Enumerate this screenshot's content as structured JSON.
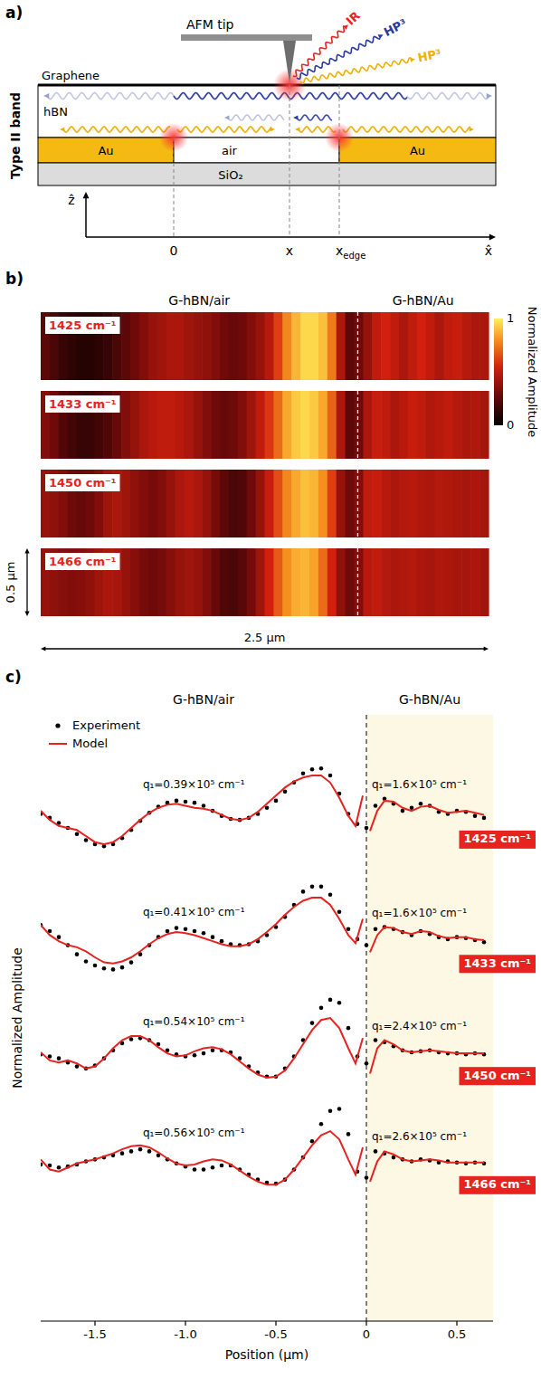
{
  "panel_a": {
    "letter": "a)",
    "side_label": "Type II band",
    "tip": "AFM tip",
    "beams": [
      "IR",
      "HP³",
      "HP³"
    ],
    "layers": {
      "graphene": "Graphene",
      "hbn": "hBN",
      "au_left": "Au",
      "air": "air",
      "au_right": "Au",
      "substrate": "SiO₂"
    },
    "axes": {
      "z_label": "ẑ",
      "x_label": "x̂",
      "positions": [
        {
          "text": "0"
        },
        {
          "text": "x"
        },
        {
          "text": "x",
          "sub": "edge"
        }
      ]
    }
  },
  "panel_b": {
    "letter": "b)",
    "regions": [
      "G-hBN/air",
      "G-hBN/Au"
    ],
    "xlim": [
      0,
      2.5
    ],
    "edge": 1.77,
    "scale_x": "2.5 μm",
    "scale_y": "0.5 μm",
    "colorbar": {
      "label": "Normalized Amplitude",
      "range": [
        0,
        1
      ],
      "ticks": [
        0,
        1
      ]
    },
    "maps": [
      {
        "label": "1425 cm⁻¹",
        "cells": [
          0.25,
          0.2,
          0.15,
          0.12,
          0.1,
          0.1,
          0.12,
          0.15,
          0.2,
          0.25,
          0.3,
          0.35,
          0.4,
          0.42,
          0.45,
          0.45,
          0.42,
          0.4,
          0.38,
          0.35,
          0.3,
          0.28,
          0.3,
          0.35,
          0.4,
          0.48,
          0.62,
          0.78,
          0.88,
          0.95,
          0.95,
          0.9,
          0.75,
          0.45,
          0.25,
          0.3,
          0.4,
          0.5,
          0.55,
          0.5,
          0.45,
          0.5,
          0.55,
          0.5,
          0.45,
          0.5,
          0.52,
          0.48,
          0.45,
          0.45
        ]
      },
      {
        "label": "1433 cm⁻¹",
        "cells": [
          0.35,
          0.3,
          0.22,
          0.18,
          0.15,
          0.15,
          0.18,
          0.22,
          0.28,
          0.35,
          0.4,
          0.45,
          0.48,
          0.5,
          0.5,
          0.48,
          0.45,
          0.4,
          0.35,
          0.3,
          0.28,
          0.3,
          0.35,
          0.42,
          0.5,
          0.6,
          0.72,
          0.85,
          0.92,
          0.95,
          0.92,
          0.85,
          0.7,
          0.45,
          0.25,
          0.3,
          0.45,
          0.52,
          0.5,
          0.45,
          0.48,
          0.52,
          0.5,
          0.46,
          0.48,
          0.5,
          0.47,
          0.45,
          0.46,
          0.44
        ]
      },
      {
        "label": "1450 cm⁻¹",
        "cells": [
          0.4,
          0.38,
          0.35,
          0.3,
          0.28,
          0.3,
          0.35,
          0.42,
          0.45,
          0.42,
          0.38,
          0.35,
          0.32,
          0.35,
          0.4,
          0.45,
          0.48,
          0.45,
          0.4,
          0.32,
          0.25,
          0.2,
          0.22,
          0.3,
          0.4,
          0.52,
          0.65,
          0.78,
          0.85,
          0.9,
          0.88,
          0.8,
          0.62,
          0.4,
          0.3,
          0.35,
          0.5,
          0.52,
          0.48,
          0.45,
          0.47,
          0.48,
          0.46,
          0.45,
          0.47,
          0.46,
          0.45,
          0.44,
          0.45,
          0.44
        ]
      },
      {
        "label": "1466 cm⁻¹",
        "cells": [
          0.4,
          0.38,
          0.36,
          0.35,
          0.36,
          0.38,
          0.42,
          0.45,
          0.44,
          0.4,
          0.36,
          0.32,
          0.3,
          0.32,
          0.36,
          0.4,
          0.42,
          0.4,
          0.35,
          0.28,
          0.22,
          0.2,
          0.24,
          0.32,
          0.42,
          0.55,
          0.68,
          0.8,
          0.86,
          0.88,
          0.84,
          0.72,
          0.55,
          0.38,
          0.3,
          0.35,
          0.48,
          0.5,
          0.47,
          0.45,
          0.46,
          0.47,
          0.45,
          0.44,
          0.46,
          0.45,
          0.44,
          0.44,
          0.45,
          0.43
        ]
      }
    ]
  },
  "panel_c": {
    "letter": "c)"
  },
  "chart_data": {
    "type": "line",
    "x_label": "Position (μm)",
    "y_label": "Normalized Amplitude",
    "regions": [
      "G-hBN/air",
      "G-hBN/Au"
    ],
    "edge": 0,
    "xlim": [
      -1.8,
      0.7
    ],
    "xticks": [
      -1.5,
      {
        "value": -1,
        "label": "-1.0"
      },
      -0.5,
      0,
      0.5
    ],
    "ylim": [
      0,
      6
    ],
    "tick_labels": "x",
    "legend": "upper left",
    "curves": [
      {
        "label": "1425 cm⁻¹",
        "q_air": "q₁=0.39×10⁵ cm⁻¹",
        "q_au": "q₁=1.6×10⁵ cm⁻¹"
      },
      {
        "label": "1433 cm⁻¹",
        "q_air": "q₁=0.41×10⁵ cm⁻¹",
        "q_au": "q₁=1.6×10⁵ cm⁻¹"
      },
      {
        "label": "1450 cm⁻¹",
        "q_air": "q₁=0.54×10⁵ cm⁻¹",
        "q_au": "q₁=2.4×10⁵ cm⁻¹"
      },
      {
        "label": "1466 cm⁻¹",
        "q_air": "q₁=0.56×10⁵ cm⁻¹",
        "q_au": "q₁=2.6×10⁵ cm⁻¹"
      }
    ],
    "series": [
      {
        "name": "Experiment",
        "type": "scatter",
        "marker": "circle",
        "color": "#000000",
        "x": [
          -1.8,
          -1.75,
          -1.7,
          -1.65,
          -1.6,
          -1.55,
          -1.5,
          -1.45,
          -1.4,
          -1.35,
          -1.3,
          -1.25,
          -1.2,
          -1.15,
          -1.1,
          -1.05,
          -1,
          -0.95,
          -0.9,
          -0.85,
          -0.8,
          -0.75,
          -0.7,
          -0.65,
          -0.6,
          -0.55,
          -0.5,
          -0.45,
          -0.4,
          -0.35,
          -0.3,
          -0.25,
          -0.2,
          -0.15,
          -0.1,
          -0.05,
          0,
          0.05,
          0.1,
          0.15,
          0.2,
          0.25,
          0.3,
          0.35,
          0.4,
          0.45,
          0.5,
          0.55,
          0.6,
          0.65
        ],
        "values": [
          5.02,
          4.98,
          4.93,
          4.88,
          4.82,
          4.76,
          4.72,
          4.7,
          4.72,
          4.78,
          4.86,
          4.95,
          5.03,
          5.09,
          5.13,
          5.15,
          5.14,
          5.13,
          5.1,
          5.05,
          5.0,
          4.97,
          4.96,
          4.98,
          5.02,
          5.08,
          5.15,
          5.24,
          5.33,
          5.42,
          5.46,
          5.47,
          5.4,
          5.22,
          5.02,
          4.92,
          4.88,
          5.1,
          5.17,
          5.12,
          5.05,
          5.08,
          5.12,
          5.1,
          5.04,
          5.02,
          5.05,
          5.04,
          5.0,
          4.98
        ]
      },
      {
        "name": "Model",
        "type": "line",
        "line_style": "solid",
        "color": "#e8231f",
        "x": [
          -1.8,
          -1.75,
          -1.7,
          -1.65,
          -1.6,
          -1.55,
          -1.5,
          -1.45,
          -1.4,
          -1.35,
          -1.3,
          -1.25,
          -1.2,
          -1.15,
          -1.1,
          -1.05,
          -1,
          -0.95,
          -0.9,
          -0.85,
          -0.8,
          -0.75,
          -0.7,
          -0.65,
          -0.6,
          -0.55,
          -0.5,
          -0.45,
          -0.4,
          -0.35,
          -0.3,
          -0.25,
          -0.2,
          -0.15,
          -0.1,
          -0.06,
          -0.02,
          0,
          0.02,
          0.06,
          0.1,
          0.15,
          0.2,
          0.25,
          0.3,
          0.35,
          0.4,
          0.45,
          0.5,
          0.55,
          0.6,
          0.65
        ],
        "values": [
          5.05,
          4.96,
          4.9,
          4.88,
          4.86,
          4.8,
          4.74,
          4.72,
          4.74,
          4.8,
          4.88,
          4.96,
          5.03,
          5.08,
          5.11,
          5.12,
          5.1,
          5.08,
          5.07,
          5.05,
          5.01,
          4.97,
          4.96,
          4.98,
          5.04,
          5.12,
          5.2,
          5.28,
          5.34,
          5.38,
          5.4,
          5.4,
          5.33,
          5.18,
          5.0,
          4.9,
          5.2,
          null,
          4.85,
          5.05,
          5.15,
          5.14,
          5.08,
          5.05,
          5.09,
          5.1,
          5.06,
          5.03,
          5.04,
          5.05,
          5.03,
          5.01
        ]
      },
      {
        "name": "Experiment",
        "type": "scatter",
        "marker": "circle",
        "color": "#000000",
        "x": [
          -1.8,
          -1.75,
          -1.7,
          -1.65,
          -1.6,
          -1.55,
          -1.5,
          -1.45,
          -1.4,
          -1.35,
          -1.3,
          -1.25,
          -1.2,
          -1.15,
          -1.1,
          -1.05,
          -1,
          -0.95,
          -0.9,
          -0.85,
          -0.8,
          -0.75,
          -0.7,
          -0.65,
          -0.6,
          -0.55,
          -0.5,
          -0.45,
          -0.4,
          -0.35,
          -0.3,
          -0.25,
          -0.2,
          -0.15,
          -0.1,
          -0.05,
          0,
          0.05,
          0.1,
          0.15,
          0.2,
          0.25,
          0.3,
          0.35,
          0.4,
          0.45,
          0.5,
          0.55,
          0.6,
          0.65
        ],
        "values": [
          3.92,
          3.86,
          3.8,
          3.72,
          3.63,
          3.56,
          3.52,
          3.49,
          3.48,
          3.5,
          3.55,
          3.63,
          3.72,
          3.8,
          3.86,
          3.89,
          3.88,
          3.86,
          3.84,
          3.8,
          3.76,
          3.73,
          3.72,
          3.73,
          3.76,
          3.82,
          3.9,
          4.0,
          4.12,
          4.25,
          4.3,
          4.3,
          4.22,
          4.05,
          3.88,
          3.78,
          3.72,
          3.88,
          3.9,
          3.88,
          3.85,
          3.82,
          3.86,
          3.83,
          3.8,
          3.78,
          3.8,
          3.79,
          3.77,
          3.75
        ]
      },
      {
        "name": "Model",
        "type": "line",
        "line_style": "solid",
        "color": "#e8231f",
        "x": [
          -1.8,
          -1.75,
          -1.7,
          -1.65,
          -1.6,
          -1.55,
          -1.5,
          -1.45,
          -1.4,
          -1.35,
          -1.3,
          -1.25,
          -1.2,
          -1.15,
          -1.1,
          -1.05,
          -1,
          -0.95,
          -0.9,
          -0.85,
          -0.8,
          -0.75,
          -0.7,
          -0.65,
          -0.6,
          -0.55,
          -0.5,
          -0.45,
          -0.4,
          -0.35,
          -0.3,
          -0.25,
          -0.2,
          -0.15,
          -0.1,
          -0.06,
          -0.02,
          0,
          0.02,
          0.06,
          0.1,
          0.15,
          0.2,
          0.25,
          0.3,
          0.35,
          0.4,
          0.45,
          0.5,
          0.55,
          0.6,
          0.65
        ],
        "values": [
          3.92,
          3.82,
          3.76,
          3.72,
          3.7,
          3.66,
          3.6,
          3.55,
          3.54,
          3.56,
          3.6,
          3.66,
          3.73,
          3.79,
          3.83,
          3.85,
          3.84,
          3.82,
          3.79,
          3.76,
          3.73,
          3.71,
          3.71,
          3.73,
          3.78,
          3.85,
          3.93,
          4.02,
          4.1,
          4.16,
          4.19,
          4.19,
          4.12,
          3.98,
          3.82,
          3.74,
          3.98,
          null,
          3.65,
          3.82,
          3.9,
          3.89,
          3.85,
          3.83,
          3.86,
          3.85,
          3.81,
          3.79,
          3.8,
          3.8,
          3.78,
          3.77
        ]
      },
      {
        "name": "Experiment",
        "type": "scatter",
        "marker": "circle",
        "color": "#000000",
        "x": [
          -1.8,
          -1.75,
          -1.7,
          -1.65,
          -1.6,
          -1.55,
          -1.5,
          -1.45,
          -1.4,
          -1.35,
          -1.3,
          -1.25,
          -1.2,
          -1.15,
          -1.1,
          -1.05,
          -1,
          -0.95,
          -0.9,
          -0.85,
          -0.8,
          -0.75,
          -0.7,
          -0.65,
          -0.6,
          -0.55,
          -0.5,
          -0.45,
          -0.4,
          -0.35,
          -0.3,
          -0.25,
          -0.2,
          -0.15,
          -0.1,
          -0.05,
          0,
          0.05,
          0.1,
          0.15,
          0.2,
          0.25,
          0.3,
          0.35,
          0.4,
          0.45,
          0.5,
          0.55,
          0.6,
          0.65
        ],
        "values": [
          2.64,
          2.62,
          2.6,
          2.56,
          2.52,
          2.5,
          2.53,
          2.6,
          2.68,
          2.75,
          2.79,
          2.8,
          2.78,
          2.74,
          2.68,
          2.64,
          2.62,
          2.63,
          2.65,
          2.68,
          2.68,
          2.66,
          2.6,
          2.52,
          2.46,
          2.42,
          2.42,
          2.5,
          2.62,
          2.78,
          2.95,
          3.1,
          3.18,
          3.15,
          2.9,
          2.62,
          2.55,
          2.78,
          2.76,
          2.72,
          2.68,
          2.66,
          2.67,
          2.68,
          2.66,
          2.65,
          2.65,
          2.64,
          2.65,
          2.64
        ]
      },
      {
        "name": "Model",
        "type": "line",
        "line_style": "solid",
        "color": "#e8231f",
        "x": [
          -1.8,
          -1.75,
          -1.7,
          -1.65,
          -1.6,
          -1.55,
          -1.5,
          -1.45,
          -1.4,
          -1.35,
          -1.3,
          -1.25,
          -1.2,
          -1.15,
          -1.1,
          -1.05,
          -1,
          -0.95,
          -0.9,
          -0.85,
          -0.8,
          -0.75,
          -0.7,
          -0.65,
          -0.6,
          -0.55,
          -0.5,
          -0.45,
          -0.4,
          -0.35,
          -0.3,
          -0.25,
          -0.2,
          -0.15,
          -0.1,
          -0.06,
          -0.02,
          0,
          0.02,
          0.06,
          0.1,
          0.15,
          0.2,
          0.25,
          0.3,
          0.35,
          0.4,
          0.45,
          0.5,
          0.55,
          0.6,
          0.65
        ],
        "values": [
          2.66,
          2.58,
          2.56,
          2.58,
          2.55,
          2.5,
          2.52,
          2.6,
          2.7,
          2.78,
          2.82,
          2.82,
          2.78,
          2.71,
          2.65,
          2.62,
          2.63,
          2.67,
          2.7,
          2.71,
          2.69,
          2.64,
          2.57,
          2.5,
          2.44,
          2.41,
          2.42,
          2.48,
          2.6,
          2.74,
          2.88,
          2.98,
          3.0,
          2.9,
          2.7,
          2.55,
          2.8,
          null,
          2.45,
          2.7,
          2.78,
          2.74,
          2.68,
          2.66,
          2.67,
          2.68,
          2.67,
          2.66,
          2.65,
          2.65,
          2.65,
          2.65
        ]
      },
      {
        "name": "Experiment",
        "type": "scatter",
        "marker": "circle",
        "color": "#000000",
        "x": [
          -1.8,
          -1.75,
          -1.7,
          -1.65,
          -1.6,
          -1.55,
          -1.5,
          -1.45,
          -1.4,
          -1.35,
          -1.3,
          -1.25,
          -1.2,
          -1.15,
          -1.1,
          -1.05,
          -1,
          -0.95,
          -0.9,
          -0.85,
          -0.8,
          -0.75,
          -0.7,
          -0.65,
          -0.6,
          -0.55,
          -0.5,
          -0.45,
          -0.4,
          -0.35,
          -0.3,
          -0.25,
          -0.2,
          -0.15,
          -0.1,
          -0.05,
          0,
          0.05,
          0.1,
          0.15,
          0.2,
          0.25,
          0.3,
          0.35,
          0.4,
          0.45,
          0.5,
          0.55,
          0.6,
          0.65
        ],
        "values": [
          1.55,
          1.54,
          1.52,
          1.53,
          1.55,
          1.58,
          1.6,
          1.62,
          1.64,
          1.66,
          1.68,
          1.7,
          1.68,
          1.64,
          1.6,
          1.56,
          1.53,
          1.5,
          1.5,
          1.52,
          1.54,
          1.54,
          1.5,
          1.45,
          1.4,
          1.37,
          1.36,
          1.4,
          1.5,
          1.62,
          1.78,
          1.95,
          2.08,
          2.1,
          1.85,
          1.48,
          1.42,
          1.68,
          1.66,
          1.62,
          1.6,
          1.58,
          1.6,
          1.59,
          1.57,
          1.58,
          1.57,
          1.56,
          1.57,
          1.56
        ]
      },
      {
        "name": "Model",
        "type": "line",
        "line_style": "solid",
        "color": "#e8231f",
        "x": [
          -1.8,
          -1.75,
          -1.7,
          -1.65,
          -1.6,
          -1.55,
          -1.5,
          -1.45,
          -1.4,
          -1.35,
          -1.3,
          -1.25,
          -1.2,
          -1.15,
          -1.1,
          -1.05,
          -1,
          -0.95,
          -0.9,
          -0.85,
          -0.8,
          -0.75,
          -0.7,
          -0.65,
          -0.6,
          -0.55,
          -0.5,
          -0.45,
          -0.4,
          -0.35,
          -0.3,
          -0.25,
          -0.2,
          -0.15,
          -0.1,
          -0.06,
          -0.02,
          0,
          0.02,
          0.06,
          0.1,
          0.15,
          0.2,
          0.25,
          0.3,
          0.35,
          0.4,
          0.45,
          0.5,
          0.55,
          0.6,
          0.65
        ],
        "values": [
          1.6,
          1.5,
          1.48,
          1.52,
          1.56,
          1.58,
          1.6,
          1.63,
          1.66,
          1.7,
          1.73,
          1.74,
          1.72,
          1.67,
          1.61,
          1.56,
          1.54,
          1.55,
          1.58,
          1.6,
          1.59,
          1.55,
          1.49,
          1.43,
          1.38,
          1.35,
          1.35,
          1.4,
          1.5,
          1.62,
          1.74,
          1.84,
          1.88,
          1.8,
          1.6,
          1.45,
          1.72,
          null,
          1.38,
          1.58,
          1.68,
          1.65,
          1.6,
          1.58,
          1.59,
          1.6,
          1.59,
          1.57,
          1.57,
          1.57,
          1.57,
          1.57
        ]
      }
    ]
  }
}
